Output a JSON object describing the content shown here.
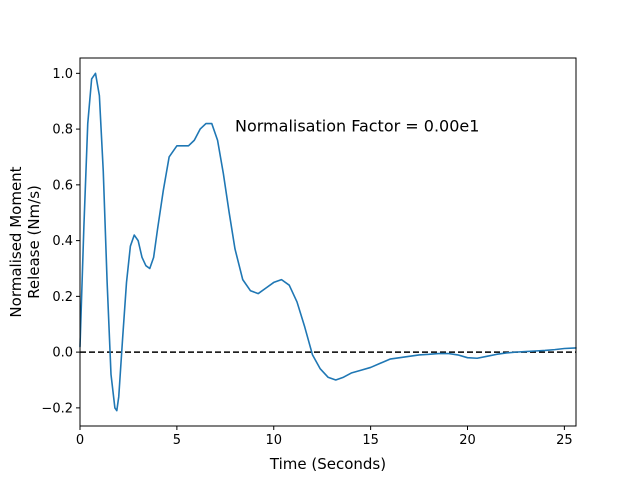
{
  "chart_data": {
    "type": "line",
    "xlabel": "Time (Seconds)",
    "ylabel_lines": [
      "Normalised Moment",
      "Release (Nm/s)"
    ],
    "xlim": [
      0,
      25.6
    ],
    "ylim": [
      -0.265,
      1.055
    ],
    "xticks": [
      0,
      5,
      10,
      15,
      20,
      25
    ],
    "xtick_labels": [
      "0",
      "5",
      "10",
      "15",
      "20",
      "25"
    ],
    "yticks": [
      -0.2,
      0.0,
      0.2,
      0.4,
      0.6,
      0.8,
      1.0
    ],
    "ytick_labels": [
      "−0.2",
      "0.0",
      "0.2",
      "0.4",
      "0.6",
      "0.8",
      "1.0"
    ],
    "grid": false,
    "annotation": {
      "text": "Normalisation Factor = 0.00e1",
      "x": 8.0,
      "y": 0.81
    },
    "reference_line": {
      "y": 0.0,
      "style": "dashed",
      "color": "#000000"
    },
    "series": [
      {
        "color": "#1f77b4",
        "x": [
          0,
          0.2,
          0.4,
          0.6,
          0.8,
          1.0,
          1.2,
          1.4,
          1.6,
          1.8,
          1.9,
          2.0,
          2.2,
          2.4,
          2.6,
          2.8,
          3.0,
          3.2,
          3.4,
          3.6,
          3.8,
          4.0,
          4.3,
          4.6,
          5.0,
          5.3,
          5.6,
          5.9,
          6.2,
          6.5,
          6.8,
          7.1,
          7.4,
          7.7,
          8.0,
          8.4,
          8.8,
          9.2,
          9.6,
          10.0,
          10.4,
          10.8,
          11.2,
          11.6,
          12.0,
          12.4,
          12.8,
          13.2,
          13.6,
          14.0,
          14.5,
          15.0,
          15.5,
          16.0,
          16.5,
          17.0,
          17.5,
          18.0,
          18.5,
          19.0,
          19.5,
          20.0,
          20.5,
          21.0,
          21.5,
          22.0,
          22.5,
          23.0,
          23.5,
          24.0,
          24.5,
          25.0,
          25.6
        ],
        "y": [
          0.02,
          0.45,
          0.82,
          0.98,
          1.0,
          0.92,
          0.65,
          0.25,
          -0.08,
          -0.2,
          -0.21,
          -0.16,
          0.05,
          0.25,
          0.38,
          0.42,
          0.4,
          0.34,
          0.31,
          0.3,
          0.34,
          0.44,
          0.58,
          0.7,
          0.74,
          0.74,
          0.74,
          0.76,
          0.8,
          0.82,
          0.82,
          0.76,
          0.64,
          0.5,
          0.37,
          0.26,
          0.22,
          0.21,
          0.23,
          0.25,
          0.26,
          0.24,
          0.18,
          0.09,
          -0.01,
          -0.06,
          -0.09,
          -0.1,
          -0.09,
          -0.075,
          -0.065,
          -0.055,
          -0.04,
          -0.025,
          -0.02,
          -0.015,
          -0.01,
          -0.008,
          -0.005,
          -0.005,
          -0.01,
          -0.02,
          -0.022,
          -0.015,
          -0.008,
          -0.003,
          0.0,
          0.002,
          0.004,
          0.006,
          0.009,
          0.013,
          0.015
        ]
      }
    ]
  }
}
